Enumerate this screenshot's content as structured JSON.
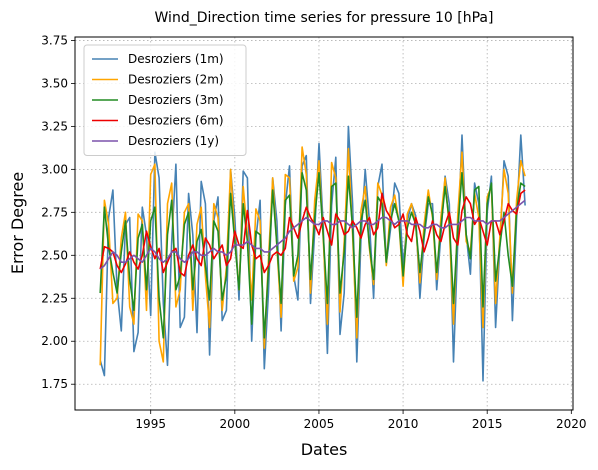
{
  "chart_data": {
    "type": "line",
    "title": "Wind_Direction time series for pressure 10 [hPa]",
    "xlabel": "Dates",
    "ylabel": "Error Degree",
    "xlim": [
      1990.5,
      2020.1
    ],
    "ylim": [
      1.6,
      3.77
    ],
    "xticks": [
      1995,
      2000,
      2005,
      2010,
      2015,
      2020
    ],
    "yticks": [
      1.75,
      2.0,
      2.25,
      2.5,
      2.75,
      3.0,
      3.25,
      3.5,
      3.75
    ],
    "ytick_labels": [
      "1.75",
      "2.00",
      "2.25",
      "2.50",
      "2.75",
      "3.00",
      "3.25",
      "3.50",
      "3.75"
    ],
    "grid": true,
    "legend_position": "top-left",
    "x_start": 1992.0,
    "x_step": 0.25,
    "series": [
      {
        "name": "Desroziers (1m)",
        "color": "#4682b4",
        "values": [
          1.89,
          1.8,
          2.72,
          2.88,
          2.3,
          2.06,
          2.68,
          2.72,
          1.94,
          2.05,
          2.78,
          2.62,
          2.15,
          3.1,
          2.95,
          2.22,
          1.86,
          2.58,
          3.03,
          2.08,
          2.14,
          2.86,
          2.62,
          2.05,
          2.93,
          2.8,
          1.92,
          2.7,
          2.84,
          2.12,
          2.18,
          3.0,
          2.72,
          2.24,
          2.99,
          2.95,
          2.0,
          2.6,
          2.82,
          1.84,
          2.29,
          2.95,
          2.7,
          2.06,
          2.79,
          3.02,
          2.38,
          2.24,
          3.02,
          3.08,
          2.22,
          2.64,
          3.15,
          2.67,
          1.93,
          2.79,
          3.07,
          2.04,
          2.28,
          3.25,
          2.8,
          1.88,
          2.6,
          3.0,
          2.7,
          2.25,
          2.9,
          3.03,
          2.45,
          2.65,
          2.92,
          2.86,
          2.44,
          2.7,
          2.8,
          2.73,
          2.25,
          2.6,
          2.8,
          2.8,
          2.3,
          2.62,
          2.96,
          2.8,
          1.88,
          2.58,
          3.2,
          2.62,
          2.39,
          2.92,
          2.8,
          1.77,
          2.75,
          2.96,
          2.08,
          2.55,
          3.05,
          2.96,
          2.12,
          2.71,
          3.2,
          2.79
        ]
      },
      {
        "name": "Desroziers (2m)",
        "color": "#ffa500",
        "values": [
          1.86,
          2.82,
          2.68,
          2.22,
          2.25,
          2.6,
          2.75,
          2.2,
          2.1,
          2.74,
          2.7,
          2.18,
          2.97,
          3.03,
          2.0,
          1.88,
          2.8,
          2.92,
          2.2,
          2.3,
          2.75,
          2.8,
          2.18,
          2.68,
          2.78,
          2.38,
          2.08,
          2.8,
          2.72,
          2.18,
          2.43,
          3.0,
          2.6,
          2.3,
          2.9,
          2.62,
          2.24,
          2.77,
          2.7,
          1.96,
          2.48,
          2.95,
          2.55,
          2.14,
          2.97,
          2.95,
          2.35,
          2.43,
          3.13,
          2.97,
          2.28,
          2.82,
          3.05,
          2.6,
          2.1,
          3.04,
          2.95,
          2.17,
          2.58,
          3.12,
          2.62,
          2.02,
          2.76,
          2.9,
          2.54,
          2.33,
          2.92,
          2.85,
          2.44,
          2.78,
          2.85,
          2.7,
          2.32,
          2.74,
          2.8,
          2.68,
          2.34,
          2.68,
          2.88,
          2.72,
          2.36,
          2.72,
          2.95,
          2.66,
          2.1,
          2.74,
          3.1,
          2.58,
          2.52,
          2.86,
          2.72,
          2.08,
          2.84,
          2.9,
          2.22,
          2.6,
          3.0,
          2.86,
          2.28,
          2.82,
          3.05,
          2.96
        ]
      },
      {
        "name": "Desroziers (3m)",
        "color": "#228b22",
        "values": [
          2.28,
          2.78,
          2.55,
          2.4,
          2.28,
          2.52,
          2.7,
          2.36,
          2.18,
          2.6,
          2.68,
          2.3,
          2.7,
          2.78,
          2.25,
          2.02,
          2.62,
          2.82,
          2.3,
          2.38,
          2.68,
          2.75,
          2.3,
          2.58,
          2.65,
          2.44,
          2.24,
          2.7,
          2.64,
          2.24,
          2.38,
          2.86,
          2.58,
          2.3,
          2.8,
          2.58,
          2.1,
          2.64,
          2.62,
          2.02,
          2.42,
          2.88,
          2.56,
          2.22,
          2.82,
          2.85,
          2.38,
          2.5,
          2.98,
          2.88,
          2.36,
          2.72,
          2.98,
          2.62,
          2.22,
          2.9,
          2.92,
          2.28,
          2.52,
          2.96,
          2.66,
          2.14,
          2.7,
          2.82,
          2.56,
          2.36,
          2.84,
          2.8,
          2.46,
          2.7,
          2.8,
          2.7,
          2.38,
          2.66,
          2.75,
          2.68,
          2.4,
          2.62,
          2.84,
          2.74,
          2.4,
          2.66,
          2.9,
          2.7,
          2.22,
          2.66,
          2.98,
          2.62,
          2.48,
          2.88,
          2.9,
          2.2,
          2.8,
          2.92,
          2.35,
          2.55,
          2.75,
          2.5,
          2.32,
          2.76,
          2.92,
          2.9
        ]
      },
      {
        "name": "Desroziers (6m)",
        "color": "#ee0000",
        "values": [
          2.42,
          2.55,
          2.54,
          2.52,
          2.44,
          2.4,
          2.45,
          2.52,
          2.46,
          2.42,
          2.5,
          2.64,
          2.55,
          2.48,
          2.54,
          2.4,
          2.46,
          2.52,
          2.54,
          2.4,
          2.38,
          2.5,
          2.56,
          2.48,
          2.44,
          2.6,
          2.56,
          2.48,
          2.52,
          2.56,
          2.44,
          2.48,
          2.64,
          2.56,
          2.54,
          2.76,
          2.56,
          2.48,
          2.5,
          2.4,
          2.44,
          2.5,
          2.52,
          2.5,
          2.54,
          2.72,
          2.66,
          2.6,
          2.7,
          2.78,
          2.72,
          2.68,
          2.62,
          2.72,
          2.64,
          2.56,
          2.74,
          2.7,
          2.62,
          2.64,
          2.7,
          2.66,
          2.6,
          2.68,
          2.72,
          2.62,
          2.66,
          2.86,
          2.76,
          2.72,
          2.66,
          2.68,
          2.74,
          2.62,
          2.58,
          2.72,
          2.64,
          2.52,
          2.6,
          2.7,
          2.62,
          2.58,
          2.68,
          2.75,
          2.6,
          2.56,
          2.76,
          2.84,
          2.8,
          2.68,
          2.72,
          2.64,
          2.56,
          2.7,
          2.7,
          2.62,
          2.7,
          2.8,
          2.76,
          2.74,
          2.86,
          2.88
        ]
      },
      {
        "name": "Desroziers (1y)",
        "color": "#7b52ab",
        "values": [
          2.42,
          2.44,
          2.48,
          2.52,
          2.5,
          2.46,
          2.46,
          2.48,
          2.5,
          2.48,
          2.46,
          2.5,
          2.54,
          2.52,
          2.48,
          2.46,
          2.48,
          2.52,
          2.52,
          2.48,
          2.46,
          2.48,
          2.52,
          2.52,
          2.5,
          2.5,
          2.52,
          2.54,
          2.52,
          2.52,
          2.5,
          2.52,
          2.56,
          2.56,
          2.56,
          2.58,
          2.56,
          2.54,
          2.54,
          2.52,
          2.52,
          2.54,
          2.56,
          2.58,
          2.6,
          2.64,
          2.66,
          2.68,
          2.7,
          2.72,
          2.7,
          2.68,
          2.68,
          2.7,
          2.7,
          2.68,
          2.68,
          2.7,
          2.7,
          2.68,
          2.66,
          2.68,
          2.7,
          2.7,
          2.68,
          2.68,
          2.7,
          2.72,
          2.72,
          2.7,
          2.68,
          2.7,
          2.7,
          2.7,
          2.68,
          2.68,
          2.68,
          2.66,
          2.66,
          2.68,
          2.68,
          2.66,
          2.66,
          2.68,
          2.68,
          2.68,
          2.7,
          2.72,
          2.72,
          2.7,
          2.7,
          2.7,
          2.68,
          2.7,
          2.7,
          2.7,
          2.72,
          2.74,
          2.76,
          2.78,
          2.8,
          2.82
        ]
      }
    ]
  }
}
